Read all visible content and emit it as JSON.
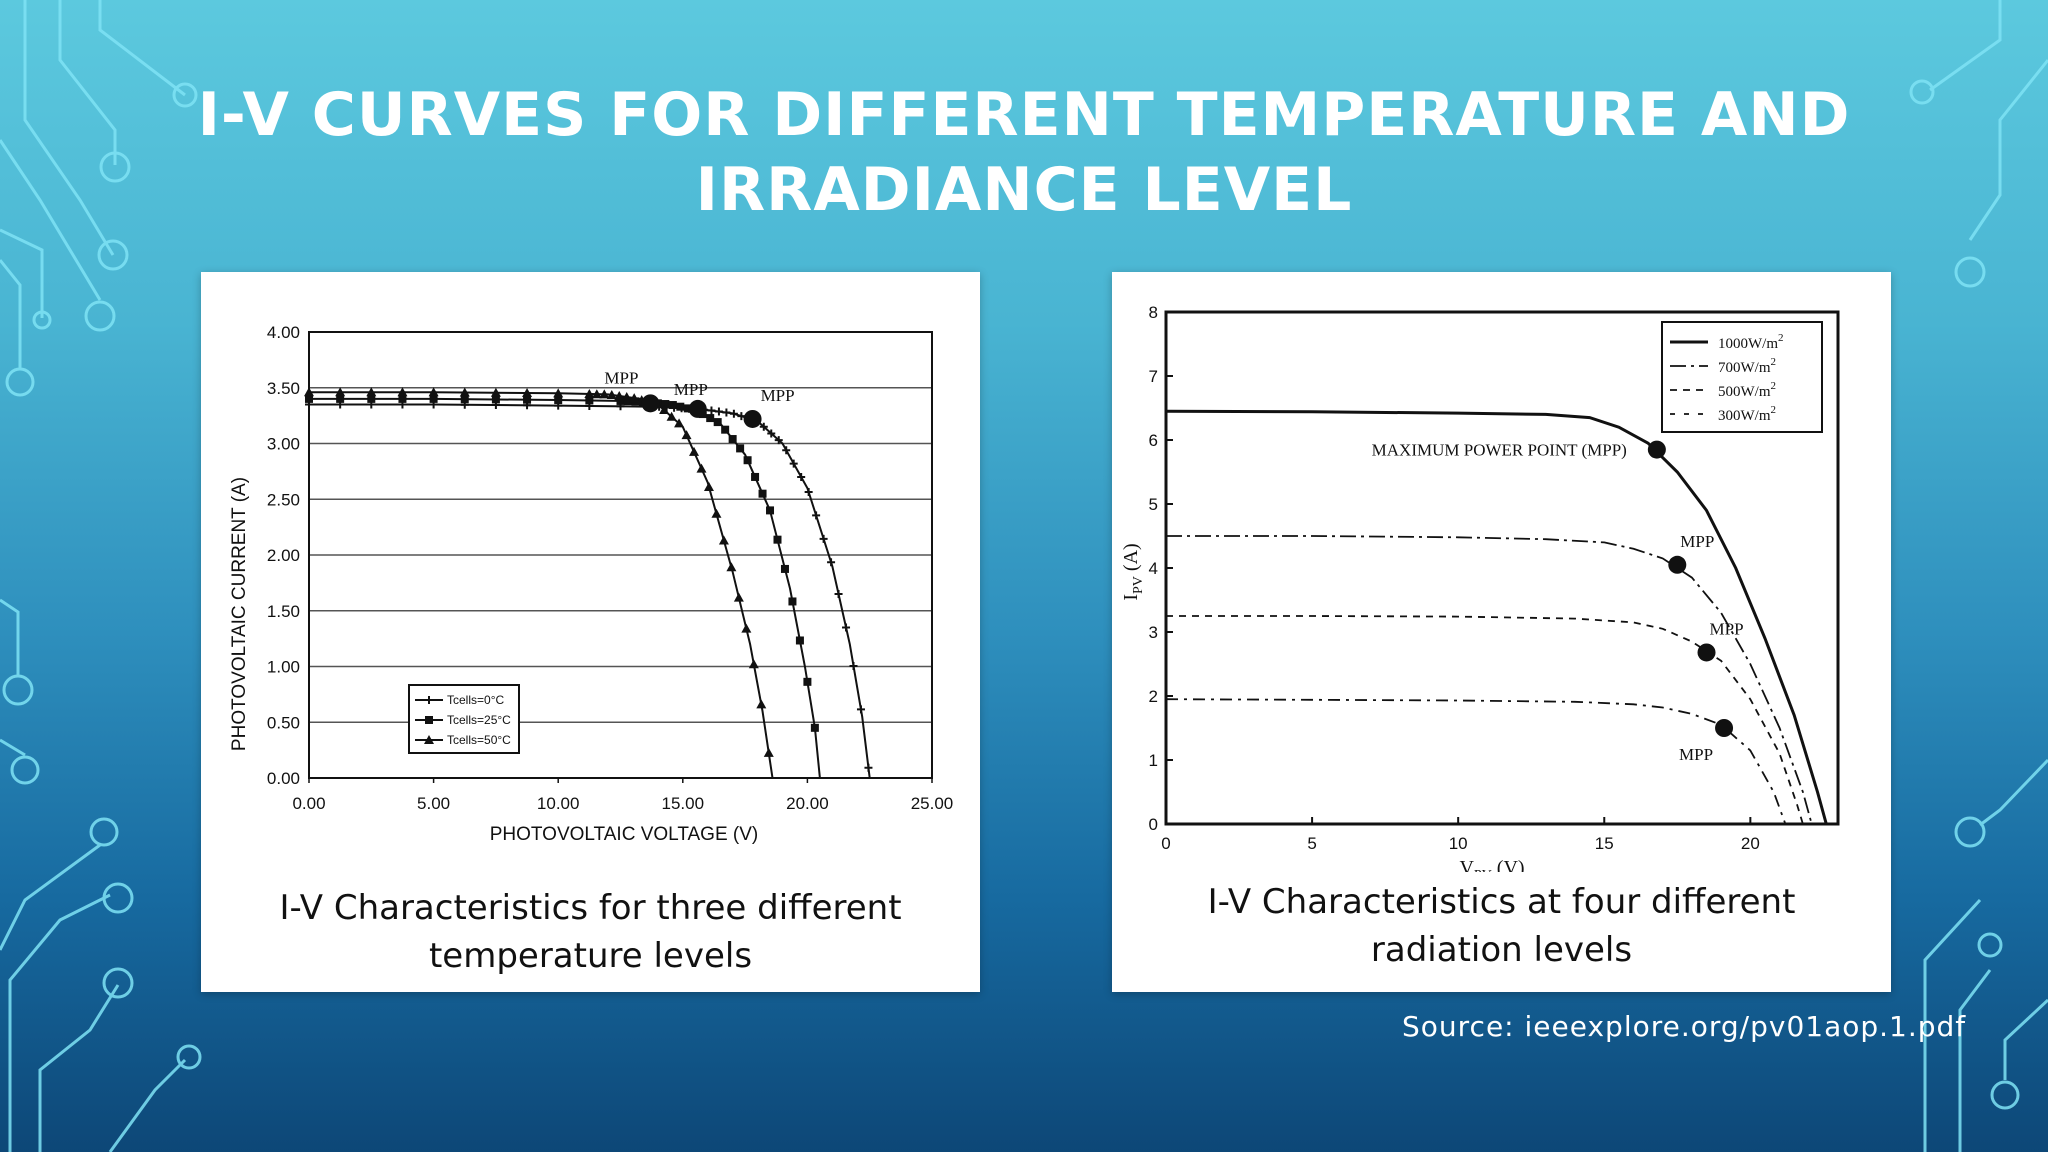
{
  "slide": {
    "title_line1": "I-V CURVES FOR DIFFERENT  TEMPERATURE AND",
    "title_line2": "IRRADIANCE LEVEL",
    "source": "Source: ieeexplore.org/pv01aop.1.pdf"
  },
  "colors": {
    "background_top": "#5cc9de",
    "background_bottom": "#0d4777",
    "title": "#ffffff",
    "circuit_lines": "#7fe3f5"
  },
  "chart_data": [
    {
      "type": "line",
      "caption_line1": "I-V Characteristics for three different",
      "caption_line2": "temperature levels",
      "xlabel": "PHOTOVOLTAIC VOLTAGE (V)",
      "ylabel": "PHOTOVOLTAIC CURRENT (A)",
      "xlim": [
        0,
        25
      ],
      "ylim": [
        0,
        4
      ],
      "x_ticks": [
        "0.00",
        "5.00",
        "10.00",
        "15.00",
        "20.00",
        "25.00"
      ],
      "y_ticks": [
        "0.00",
        "0.50",
        "1.00",
        "1.50",
        "2.00",
        "2.50",
        "3.00",
        "3.50",
        "4.00"
      ],
      "grid": "horizontal",
      "legend_position": "bottom-left",
      "series": [
        {
          "name": "Tcells=0°C",
          "marker": "plus",
          "isc": 3.35,
          "voc": 22.5,
          "points": [
            [
              0,
              3.35
            ],
            [
              5,
              3.35
            ],
            [
              10,
              3.34
            ],
            [
              14,
              3.33
            ],
            [
              16,
              3.3
            ],
            [
              17,
              3.27
            ],
            [
              18,
              3.2
            ],
            [
              19,
              3.0
            ],
            [
              20,
              2.6
            ],
            [
              21,
              1.9
            ],
            [
              21.7,
              1.2
            ],
            [
              22.2,
              0.55
            ],
            [
              22.5,
              0
            ]
          ],
          "mpp": [
            17.8,
            3.22
          ],
          "mpp_label": "MPP"
        },
        {
          "name": "Tcells=25°C",
          "marker": "square",
          "isc": 3.4,
          "voc": 20.5,
          "points": [
            [
              0,
              3.4
            ],
            [
              5,
              3.4
            ],
            [
              10,
              3.39
            ],
            [
              13,
              3.38
            ],
            [
              14.5,
              3.35
            ],
            [
              15.5,
              3.3
            ],
            [
              16.5,
              3.18
            ],
            [
              17.5,
              2.9
            ],
            [
              18.5,
              2.4
            ],
            [
              19.3,
              1.7
            ],
            [
              19.9,
              1.0
            ],
            [
              20.3,
              0.45
            ],
            [
              20.5,
              0
            ]
          ],
          "mpp": [
            15.6,
            3.31
          ],
          "mpp_label": "MPP"
        },
        {
          "name": "Tcells=50°C",
          "marker": "triangle",
          "isc": 3.46,
          "voc": 18.6,
          "points": [
            [
              0,
              3.46
            ],
            [
              5,
              3.46
            ],
            [
              10,
              3.45
            ],
            [
              12,
              3.44
            ],
            [
              13,
              3.41
            ],
            [
              14,
              3.35
            ],
            [
              15,
              3.15
            ],
            [
              16,
              2.65
            ],
            [
              17,
              1.85
            ],
            [
              17.7,
              1.2
            ],
            [
              18.2,
              0.6
            ],
            [
              18.6,
              0
            ]
          ],
          "mpp": [
            13.7,
            3.36
          ],
          "mpp_label": "MPP"
        }
      ]
    },
    {
      "type": "line",
      "caption_line1": "I-V Characteristics at four different",
      "caption_line2": "radiation levels",
      "xlabel_main": "V",
      "xlabel_sub": "PV",
      "xlabel_unit": " (V)",
      "ylabel_main": "I",
      "ylabel_sub": "PV",
      "ylabel_unit": " (A)",
      "xlim": [
        0,
        23
      ],
      "ylim": [
        0,
        8
      ],
      "x_ticks": [
        "0",
        "5",
        "10",
        "15",
        "20"
      ],
      "y_ticks": [
        "0",
        "1",
        "2",
        "3",
        "4",
        "5",
        "6",
        "7",
        "8"
      ],
      "grid": "off",
      "legend_position": "top-right",
      "annotation_main": "MAXIMUM POWER POINT (MPP)",
      "series": [
        {
          "name": "1000W/m",
          "name_sup": "2",
          "dash": "solid",
          "points": [
            [
              0,
              6.45
            ],
            [
              5,
              6.44
            ],
            [
              10,
              6.42
            ],
            [
              13,
              6.4
            ],
            [
              14.5,
              6.35
            ],
            [
              15.5,
              6.2
            ],
            [
              16.5,
              5.95
            ],
            [
              17.5,
              5.5
            ],
            [
              18.5,
              4.9
            ],
            [
              19.5,
              4.0
            ],
            [
              20.5,
              2.9
            ],
            [
              21.5,
              1.7
            ],
            [
              22.3,
              0.5
            ],
            [
              22.6,
              0
            ]
          ],
          "mpp": [
            16.8,
            5.85
          ],
          "mpp_label": "MAXIMUM POWER POINT (MPP)"
        },
        {
          "name": "700W/m",
          "name_sup": "2",
          "dash": "dashdot",
          "points": [
            [
              0,
              4.5
            ],
            [
              5,
              4.5
            ],
            [
              10,
              4.48
            ],
            [
              13,
              4.45
            ],
            [
              15,
              4.4
            ],
            [
              16,
              4.3
            ],
            [
              17,
              4.15
            ],
            [
              18,
              3.85
            ],
            [
              19,
              3.3
            ],
            [
              20,
              2.5
            ],
            [
              21,
              1.5
            ],
            [
              21.8,
              0.5
            ],
            [
              22.1,
              0
            ]
          ],
          "mpp": [
            17.5,
            4.05
          ],
          "mpp_label": "MPP"
        },
        {
          "name": "500W/m",
          "name_sup": "2",
          "dash": "dashed",
          "points": [
            [
              0,
              3.25
            ],
            [
              5,
              3.25
            ],
            [
              10,
              3.24
            ],
            [
              14,
              3.21
            ],
            [
              16,
              3.15
            ],
            [
              17,
              3.05
            ],
            [
              18,
              2.85
            ],
            [
              19,
              2.55
            ],
            [
              20,
              1.95
            ],
            [
              21,
              1.1
            ],
            [
              21.6,
              0.3
            ],
            [
              21.8,
              0
            ]
          ],
          "mpp": [
            18.5,
            2.68
          ],
          "mpp_label": "MPP"
        },
        {
          "name": "300W/m",
          "name_sup": "2",
          "dash": "dotdash",
          "points": [
            [
              0,
              1.95
            ],
            [
              5,
              1.94
            ],
            [
              10,
              1.93
            ],
            [
              14,
              1.91
            ],
            [
              16,
              1.87
            ],
            [
              17,
              1.82
            ],
            [
              18,
              1.72
            ],
            [
              19,
              1.55
            ],
            [
              20,
              1.15
            ],
            [
              20.8,
              0.5
            ],
            [
              21.2,
              0
            ]
          ],
          "mpp": [
            19.1,
            1.5
          ],
          "mpp_label": "MPP"
        }
      ]
    }
  ]
}
